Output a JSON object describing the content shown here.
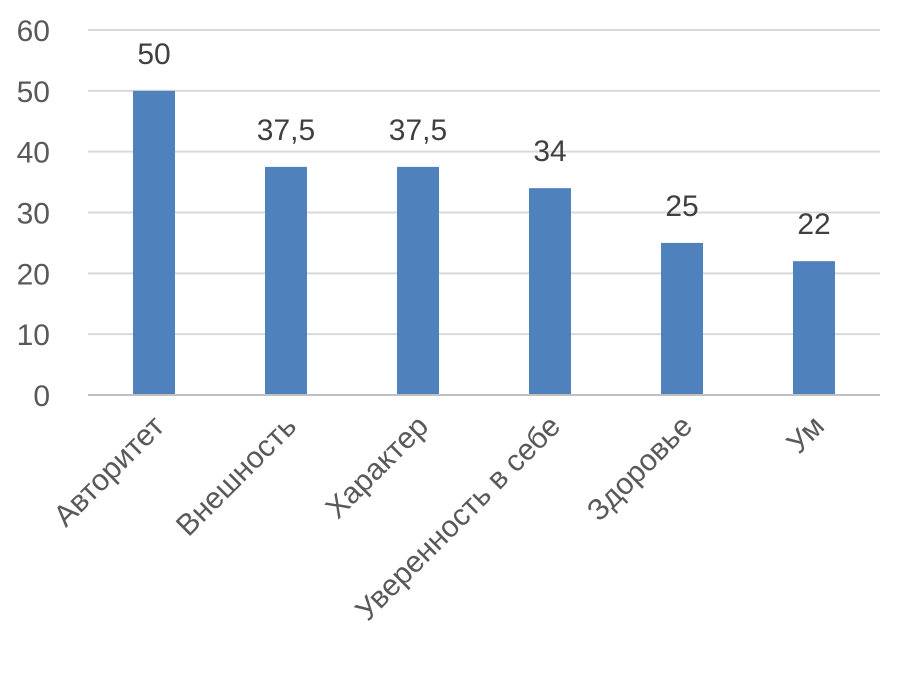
{
  "chart_data": {
    "type": "bar",
    "title": "",
    "xlabel": "",
    "ylabel": "",
    "categories": [
      "Авторитет",
      "Внешность",
      "Характер",
      "Уверенность в себе",
      "Здоровье",
      "Ум"
    ],
    "values": [
      50,
      37.5,
      37.5,
      34,
      25,
      22
    ],
    "value_labels": [
      "50",
      "37,5",
      "37,5",
      "34",
      "25",
      "22"
    ],
    "ylim": [
      0,
      60
    ],
    "y_ticks": [
      "0",
      "10",
      "20",
      "30",
      "40",
      "50",
      "60"
    ],
    "grid": true,
    "legend": "none",
    "colors": {
      "bar": "#4F81BD",
      "grid": "#D9D9D9",
      "axis": "#BFBFBF"
    }
  }
}
